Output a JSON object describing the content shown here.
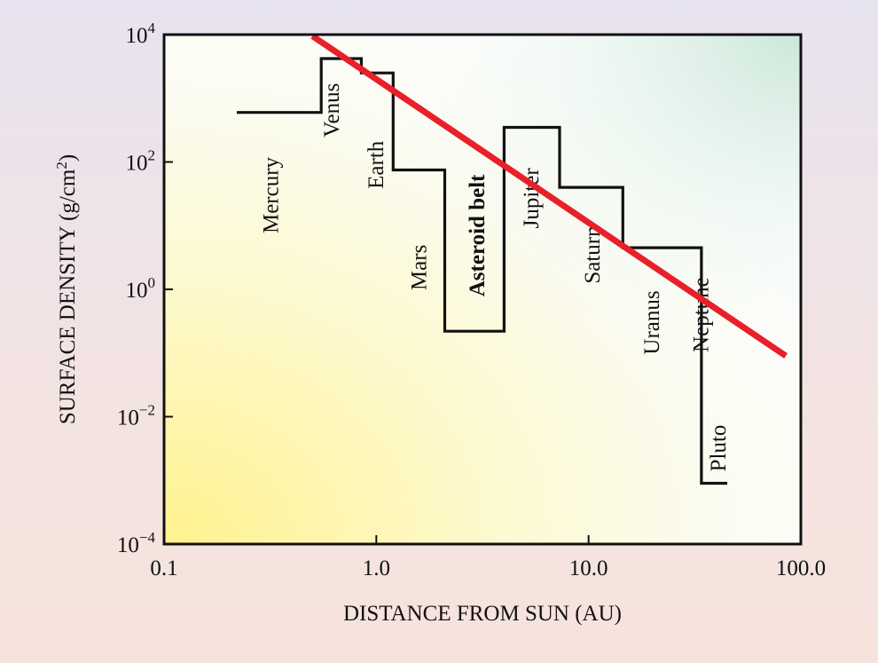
{
  "chart_data": {
    "type": "line",
    "xlabel": "DISTANCE FROM SUN (AU)",
    "ylabel_main": "SURFACE DENSITY (g/cm",
    "ylabel_sup": "2",
    "ylabel_end": ")",
    "x_scale": "log",
    "y_scale": "log",
    "xlim": [
      0.1,
      100.0
    ],
    "ylim": [
      0.0001,
      10000
    ],
    "x_ticks": [
      {
        "value": 0.1,
        "label": "0.1"
      },
      {
        "value": 1.0,
        "label": "1.0"
      },
      {
        "value": 10.0,
        "label": "10.0"
      },
      {
        "value": 100.0,
        "label": "100.0"
      }
    ],
    "y_ticks": [
      {
        "value": 0.0001,
        "base": "10",
        "exp": "−4"
      },
      {
        "value": 0.01,
        "base": "10",
        "exp": "−2"
      },
      {
        "value": 1,
        "base": "10",
        "exp": "0"
      },
      {
        "value": 100,
        "base": "10",
        "exp": "2"
      },
      {
        "value": 10000,
        "base": "10",
        "exp": "4"
      }
    ],
    "series": [
      {
        "step_points": [
          [
            0.22,
            600
          ],
          [
            0.55,
            600
          ],
          [
            0.55,
            4200
          ],
          [
            0.85,
            4200
          ],
          [
            0.85,
            2500
          ],
          [
            1.2,
            2500
          ],
          [
            1.2,
            75
          ],
          [
            2.1,
            75
          ],
          [
            2.1,
            0.22
          ],
          [
            4.0,
            0.22
          ],
          [
            4.0,
            350
          ],
          [
            7.3,
            350
          ],
          [
            7.3,
            40
          ],
          [
            14.5,
            40
          ],
          [
            14.5,
            4.5
          ],
          [
            34,
            4.5
          ],
          [
            34,
            0.0009
          ],
          [
            45,
            0.0009
          ]
        ]
      },
      {
        "line_points": [
          [
            0.5,
            9500
          ],
          [
            85,
            0.09
          ]
        ]
      }
    ],
    "planet_labels": [
      {
        "name": "Mercury",
        "x": 0.32,
        "y": 30,
        "highlight": false
      },
      {
        "name": "Venus",
        "x": 0.62,
        "y": 650,
        "highlight": false
      },
      {
        "name": "Earth",
        "x": 1.0,
        "y": 90,
        "highlight": false
      },
      {
        "name": "Mars",
        "x": 1.6,
        "y": 2.2,
        "highlight": false
      },
      {
        "name": "Asteroid belt",
        "x": 3.0,
        "y": 7,
        "highlight": true
      },
      {
        "name": "Jupiter",
        "x": 5.4,
        "y": 27,
        "highlight": false
      },
      {
        "name": "Saturn",
        "x": 10.5,
        "y": 3.5,
        "highlight": false
      },
      {
        "name": "Uranus",
        "x": 20,
        "y": 0.3,
        "highlight": false
      },
      {
        "name": "Neptune",
        "x": 34,
        "y": 0.4,
        "highlight": false
      },
      {
        "name": "Pluto",
        "x": 41,
        "y": 0.0032,
        "highlight": false
      }
    ]
  },
  "colors": {
    "step_line": "#111111",
    "fit_line": "#e8202a",
    "highlight_label": "#1aa6dc",
    "plot_gradient_yellow": "#fff59a",
    "plot_gradient_teal": "#d9ece3"
  }
}
